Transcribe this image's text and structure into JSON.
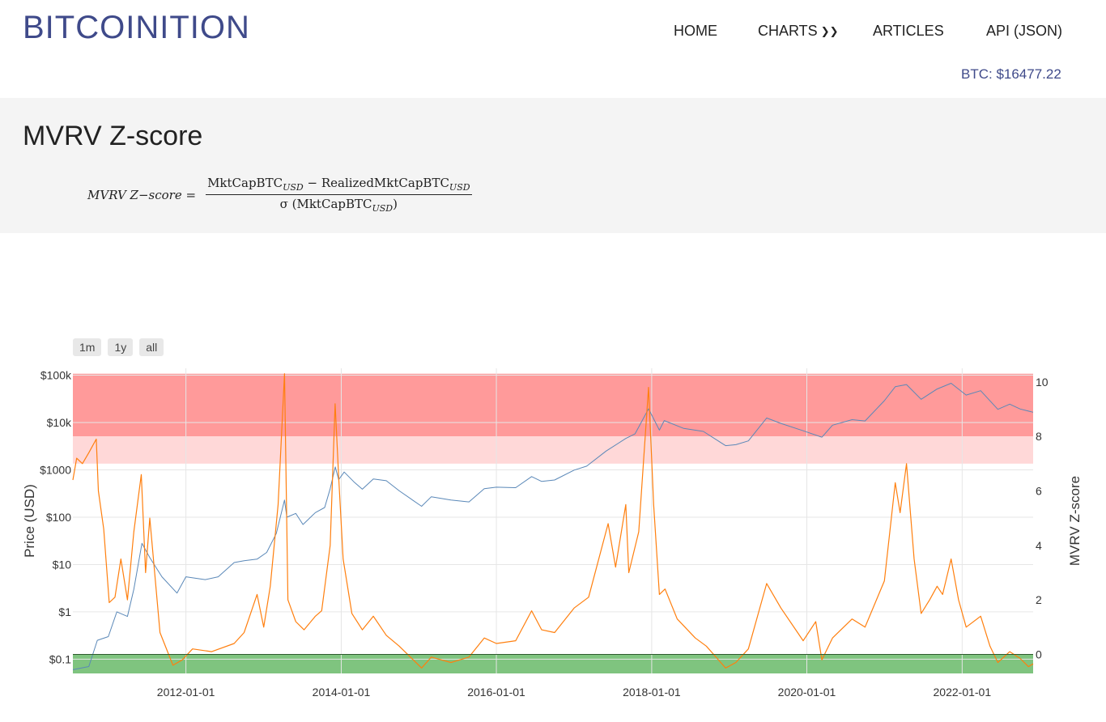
{
  "header": {
    "brand": "BITCOINITION",
    "nav": [
      {
        "label": "HOME"
      },
      {
        "label": "CHARTS"
      },
      {
        "label": "ARTICLES"
      },
      {
        "label": "API (JSON)"
      }
    ],
    "btc_price": "BTC: $16477.22"
  },
  "page": {
    "title": "MVRV Z-score",
    "formula": {
      "lhs": "MVRV Z−score =",
      "numerator_a": "MktCapBTC",
      "numerator_sub_a": "USD",
      "numerator_op": " − ",
      "numerator_b": "RealizedMktCapBTC",
      "numerator_sub_b": "USD",
      "denominator_pre": "σ (MktCapBTC",
      "denominator_sub": "USD",
      "denominator_post": ")"
    }
  },
  "range_buttons": [
    "1m",
    "1y",
    "all"
  ],
  "chart_data": {
    "type": "line",
    "y_left": {
      "label": "Price (USD)",
      "scale": "log",
      "range": [
        0.05,
        140000
      ],
      "ticks": [
        {
          "value": 100000,
          "label": "$100k"
        },
        {
          "value": 10000,
          "label": "$10k"
        },
        {
          "value": 1000,
          "label": "$1000"
        },
        {
          "value": 100,
          "label": "$100"
        },
        {
          "value": 10,
          "label": "$10"
        },
        {
          "value": 1,
          "label": "$1"
        },
        {
          "value": 0.1,
          "label": "$0.1"
        }
      ]
    },
    "y_right": {
      "label": "MVRV Z-score",
      "range": [
        -0.7,
        10.5
      ],
      "ticks": [
        10,
        8,
        6,
        4,
        2,
        0
      ]
    },
    "x": {
      "range": [
        "2010-07-18",
        "2022-12-01"
      ],
      "ticks": [
        {
          "date": "2012-01-01",
          "label": "2012-01-01"
        },
        {
          "date": "2014-01-01",
          "label": "2014-01-01"
        },
        {
          "date": "2016-01-01",
          "label": "2016-01-01"
        },
        {
          "date": "2018-01-01",
          "label": "2018-01-01"
        },
        {
          "date": "2020-01-01",
          "label": "2020-01-01"
        },
        {
          "date": "2022-01-01",
          "label": "2022-01-01"
        }
      ]
    },
    "bands": [
      {
        "from": 8,
        "to": 10.3,
        "color": "#ff9a9a"
      },
      {
        "from": 7,
        "to": 8,
        "color": "#ffd8d8"
      },
      {
        "from": -0.7,
        "to": 0,
        "color": "#7fc47f"
      }
    ],
    "series": [
      {
        "axis": "left",
        "color": "#5a88b8",
        "points": [
          [
            "2010-07-18",
            0.06
          ],
          [
            "2010-10-01",
            0.07
          ],
          [
            "2010-11-10",
            0.25
          ],
          [
            "2011-01-01",
            0.3
          ],
          [
            "2011-02-10",
            1.0
          ],
          [
            "2011-04-01",
            0.8
          ],
          [
            "2011-05-01",
            3.0
          ],
          [
            "2011-06-08",
            28
          ],
          [
            "2011-07-15",
            14
          ],
          [
            "2011-09-10",
            5.5
          ],
          [
            "2011-11-20",
            2.5
          ],
          [
            "2012-01-01",
            5.5
          ],
          [
            "2012-04-01",
            4.8
          ],
          [
            "2012-06-01",
            5.5
          ],
          [
            "2012-08-15",
            11
          ],
          [
            "2012-10-01",
            12
          ],
          [
            "2012-12-01",
            13
          ],
          [
            "2013-01-15",
            18
          ],
          [
            "2013-03-01",
            45
          ],
          [
            "2013-04-09",
            230
          ],
          [
            "2013-04-20",
            100
          ],
          [
            "2013-06-01",
            120
          ],
          [
            "2013-07-05",
            70
          ],
          [
            "2013-09-01",
            125
          ],
          [
            "2013-10-15",
            160
          ],
          [
            "2013-11-10",
            400
          ],
          [
            "2013-12-04",
            1150
          ],
          [
            "2013-12-20",
            620
          ],
          [
            "2014-01-15",
            900
          ],
          [
            "2014-03-01",
            560
          ],
          [
            "2014-04-10",
            390
          ],
          [
            "2014-06-01",
            640
          ],
          [
            "2014-08-01",
            590
          ],
          [
            "2014-10-01",
            360
          ],
          [
            "2015-01-14",
            170
          ],
          [
            "2015-03-01",
            270
          ],
          [
            "2015-06-01",
            230
          ],
          [
            "2015-08-25",
            210
          ],
          [
            "2015-11-05",
            400
          ],
          [
            "2016-01-01",
            430
          ],
          [
            "2016-04-01",
            420
          ],
          [
            "2016-06-15",
            720
          ],
          [
            "2016-08-01",
            570
          ],
          [
            "2016-10-01",
            610
          ],
          [
            "2017-01-01",
            990
          ],
          [
            "2017-03-01",
            1200
          ],
          [
            "2017-06-01",
            2500
          ],
          [
            "2017-09-01",
            4600
          ],
          [
            "2017-10-15",
            5800
          ],
          [
            "2017-12-17",
            19500
          ],
          [
            "2018-02-06",
            6900
          ],
          [
            "2018-03-01",
            11000
          ],
          [
            "2018-06-01",
            7500
          ],
          [
            "2018-09-01",
            6500
          ],
          [
            "2018-12-15",
            3250
          ],
          [
            "2019-02-01",
            3400
          ],
          [
            "2019-04-01",
            4100
          ],
          [
            "2019-06-26",
            12500
          ],
          [
            "2019-09-01",
            9600
          ],
          [
            "2019-12-15",
            6700
          ],
          [
            "2020-03-12",
            4900
          ],
          [
            "2020-05-01",
            8800
          ],
          [
            "2020-08-01",
            11500
          ],
          [
            "2020-10-01",
            10800
          ],
          [
            "2020-12-31",
            29000
          ],
          [
            "2021-02-20",
            57000
          ],
          [
            "2021-04-14",
            63500
          ],
          [
            "2021-06-22",
            31000
          ],
          [
            "2021-09-05",
            51000
          ],
          [
            "2021-11-10",
            67500
          ],
          [
            "2022-01-20",
            38000
          ],
          [
            "2022-03-29",
            47000
          ],
          [
            "2022-06-18",
            19000
          ],
          [
            "2022-08-13",
            24500
          ],
          [
            "2022-10-01",
            19300
          ],
          [
            "2022-12-01",
            16477.22
          ]
        ]
      },
      {
        "axis": "right",
        "color": "#ff7f0e",
        "points": [
          [
            "2010-07-18",
            6.4
          ],
          [
            "2010-08-05",
            7.2
          ],
          [
            "2010-09-01",
            7.0
          ],
          [
            "2010-10-01",
            7.4
          ],
          [
            "2010-11-05",
            7.9
          ],
          [
            "2010-11-15",
            6.0
          ],
          [
            "2010-12-10",
            4.6
          ],
          [
            "2011-01-05",
            1.9
          ],
          [
            "2011-02-01",
            2.1
          ],
          [
            "2011-03-01",
            3.5
          ],
          [
            "2011-04-01",
            2.0
          ],
          [
            "2011-05-01",
            4.5
          ],
          [
            "2011-06-05",
            6.6
          ],
          [
            "2011-06-25",
            3.0
          ],
          [
            "2011-07-15",
            5.0
          ],
          [
            "2011-09-01",
            0.8
          ],
          [
            "2011-11-01",
            -0.4
          ],
          [
            "2011-12-15",
            -0.2
          ],
          [
            "2012-02-01",
            0.2
          ],
          [
            "2012-05-01",
            0.1
          ],
          [
            "2012-08-15",
            0.4
          ],
          [
            "2012-10-01",
            0.8
          ],
          [
            "2012-12-01",
            2.2
          ],
          [
            "2013-01-01",
            1.0
          ],
          [
            "2013-02-01",
            2.5
          ],
          [
            "2013-03-10",
            5.5
          ],
          [
            "2013-04-09",
            10.3
          ],
          [
            "2013-04-25",
            2.0
          ],
          [
            "2013-06-01",
            1.2
          ],
          [
            "2013-07-10",
            0.9
          ],
          [
            "2013-09-01",
            1.4
          ],
          [
            "2013-10-01",
            1.6
          ],
          [
            "2013-11-10",
            4.0
          ],
          [
            "2013-12-03",
            9.2
          ],
          [
            "2013-12-20",
            6.5
          ],
          [
            "2014-01-10",
            3.5
          ],
          [
            "2014-02-20",
            1.5
          ],
          [
            "2014-04-10",
            0.9
          ],
          [
            "2014-06-01",
            1.4
          ],
          [
            "2014-08-01",
            0.7
          ],
          [
            "2014-10-01",
            0.3
          ],
          [
            "2015-01-14",
            -0.5
          ],
          [
            "2015-03-01",
            -0.1
          ],
          [
            "2015-06-01",
            -0.3
          ],
          [
            "2015-08-25",
            -0.1
          ],
          [
            "2015-11-05",
            0.6
          ],
          [
            "2016-01-01",
            0.4
          ],
          [
            "2016-04-01",
            0.5
          ],
          [
            "2016-06-15",
            1.6
          ],
          [
            "2016-08-01",
            0.9
          ],
          [
            "2016-10-01",
            0.8
          ],
          [
            "2017-01-01",
            1.7
          ],
          [
            "2017-03-10",
            2.1
          ],
          [
            "2017-06-10",
            4.8
          ],
          [
            "2017-07-15",
            3.2
          ],
          [
            "2017-09-01",
            5.5
          ],
          [
            "2017-09-15",
            3.0
          ],
          [
            "2017-11-01",
            4.5
          ],
          [
            "2017-12-17",
            9.8
          ],
          [
            "2018-01-10",
            5.5
          ],
          [
            "2018-02-06",
            2.2
          ],
          [
            "2018-03-05",
            2.4
          ],
          [
            "2018-05-01",
            1.3
          ],
          [
            "2018-07-25",
            0.6
          ],
          [
            "2018-09-15",
            0.3
          ],
          [
            "2018-12-15",
            -0.5
          ],
          [
            "2019-02-01",
            -0.3
          ],
          [
            "2019-04-01",
            0.2
          ],
          [
            "2019-06-26",
            2.6
          ],
          [
            "2019-09-01",
            1.7
          ],
          [
            "2019-12-15",
            0.5
          ],
          [
            "2020-02-12",
            1.2
          ],
          [
            "2020-03-12",
            -0.2
          ],
          [
            "2020-05-01",
            0.6
          ],
          [
            "2020-08-01",
            1.3
          ],
          [
            "2020-10-01",
            1.0
          ],
          [
            "2020-12-31",
            2.7
          ],
          [
            "2021-02-20",
            6.3
          ],
          [
            "2021-03-15",
            5.2
          ],
          [
            "2021-04-14",
            7.0
          ],
          [
            "2021-05-20",
            3.5
          ],
          [
            "2021-06-22",
            1.5
          ],
          [
            "2021-08-01",
            2.0
          ],
          [
            "2021-09-05",
            2.5
          ],
          [
            "2021-10-01",
            2.2
          ],
          [
            "2021-11-10",
            3.5
          ],
          [
            "2021-12-15",
            2.0
          ],
          [
            "2022-01-20",
            1.0
          ],
          [
            "2022-03-29",
            1.4
          ],
          [
            "2022-05-12",
            0.3
          ],
          [
            "2022-06-18",
            -0.3
          ],
          [
            "2022-08-13",
            0.1
          ],
          [
            "2022-10-01",
            -0.15
          ],
          [
            "2022-11-09",
            -0.45
          ],
          [
            "2022-12-01",
            -0.35
          ]
        ]
      }
    ]
  }
}
